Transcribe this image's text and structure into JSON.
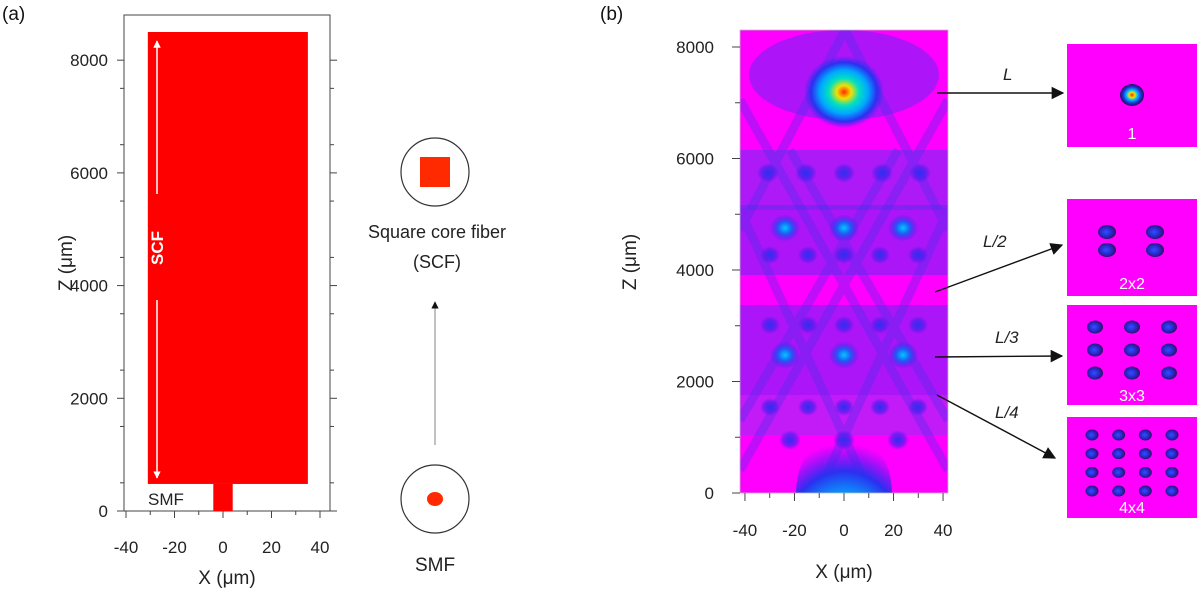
{
  "panel_a": {
    "label": "(a)",
    "ylabel": "Z (μm)",
    "xlabel": "X (μm)",
    "x_ticks": [
      -40,
      -20,
      0,
      20,
      40
    ],
    "y_ticks": [
      0,
      2000,
      4000,
      6000,
      8000
    ],
    "xlim": [
      -40,
      40
    ],
    "ylim": [
      0,
      8500
    ],
    "scf_region": {
      "x": [
        -31,
        35
      ],
      "z": [
        480,
        8500
      ],
      "label": "SCF",
      "color": "#ff0000"
    },
    "smf_region": {
      "x": [
        -4,
        4
      ],
      "z": [
        0,
        480
      ],
      "label": "SMF",
      "color": "#ff0000"
    }
  },
  "schematic": {
    "top_label_line1": "Square core fiber",
    "top_label_line2": "(SCF)",
    "bottom_label": "SMF",
    "core_color": "#ff2a00"
  },
  "panel_b": {
    "label": "(b)",
    "ylabel": "Z (μm)",
    "xlabel": "X (μm)",
    "x_ticks": [
      -40,
      -20,
      0,
      20,
      40
    ],
    "y_ticks": [
      0,
      2000,
      4000,
      6000,
      8000
    ],
    "xlim": [
      -40,
      40
    ],
    "ylim": [
      0,
      8300
    ],
    "field_colors": {
      "background": "#ff00ff",
      "low": "#3a1bf0",
      "mid": "#00c0ff",
      "high": "#f2e000",
      "peak": "#ff2a00"
    },
    "insets": [
      {
        "arrow_label": "L",
        "image_label": "1",
        "grid": 1,
        "z": 7300
      },
      {
        "arrow_label": "L/2",
        "image_label": "2x2",
        "grid": 2,
        "z": 3700
      },
      {
        "arrow_label": "L/3",
        "image_label": "3x3",
        "grid": 3,
        "z": 2450
      },
      {
        "arrow_label": "L/4",
        "image_label": "4x4",
        "grid": 4,
        "z": 2100
      }
    ]
  }
}
